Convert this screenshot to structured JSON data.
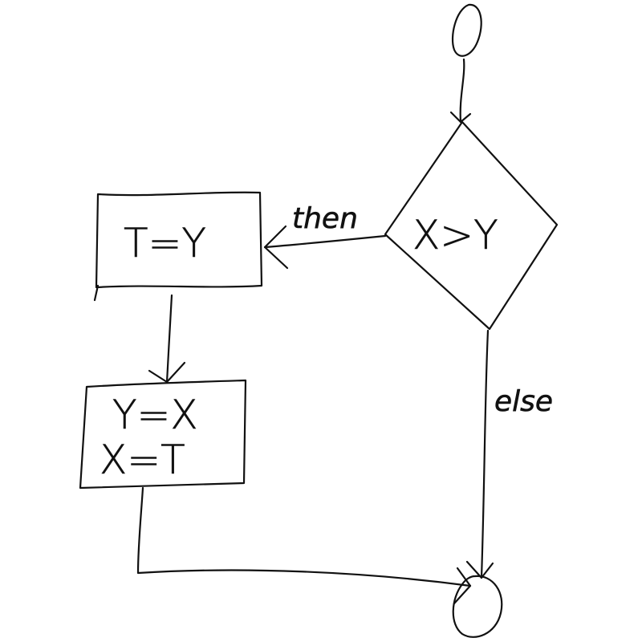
{
  "diagram": {
    "type": "flowchart",
    "style": "hand-drawn",
    "ink_color": "#111111",
    "nodes": [
      {
        "id": "start",
        "shape": "ellipse",
        "label": ""
      },
      {
        "id": "decision",
        "shape": "diamond",
        "label": "X>Y"
      },
      {
        "id": "assign-t",
        "shape": "rectangle",
        "label": "T=Y"
      },
      {
        "id": "swap",
        "shape": "rectangle",
        "lines": [
          "Y=X",
          "X=T"
        ]
      },
      {
        "id": "end",
        "shape": "ellipse",
        "label": ""
      }
    ],
    "edges": [
      {
        "from": "start",
        "to": "decision",
        "label": ""
      },
      {
        "from": "decision",
        "to": "assign-t",
        "label": "then"
      },
      {
        "from": "assign-t",
        "to": "swap",
        "label": ""
      },
      {
        "from": "swap",
        "to": "end",
        "label": ""
      },
      {
        "from": "decision",
        "to": "end",
        "label": "else"
      }
    ]
  }
}
